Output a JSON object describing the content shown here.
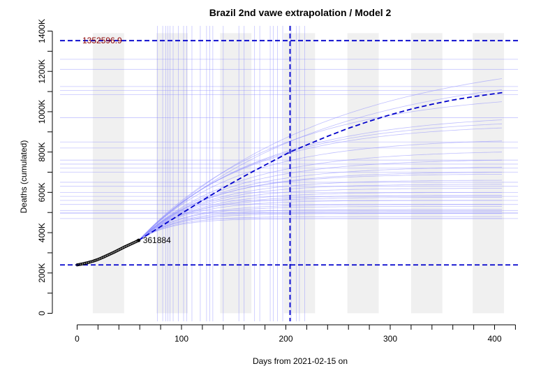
{
  "chart_data": {
    "type": "line",
    "title": "Brazil 2nd vawe extrapolation / Model 2",
    "xlabel": "Days from 2021-02-15 on",
    "ylabel": "Deaths (cumulated)",
    "xlim": [
      0,
      420
    ],
    "ylim": [
      0,
      1400000
    ],
    "x_ticks": [
      0,
      100,
      200,
      300,
      400
    ],
    "x_tick_labels": [
      "0",
      "100",
      "200",
      "300",
      "400"
    ],
    "y_ticks": [
      0,
      200000,
      400000,
      600000,
      800000,
      1000000,
      1200000,
      1400000
    ],
    "y_tick_labels": [
      "0",
      "200K",
      "400K",
      "600K",
      "800K",
      "1000K",
      "1200K",
      "1400K"
    ],
    "grid": false,
    "colors": {
      "observed": "#000000",
      "model": "#0000cc",
      "ensemble": "#8c8cff",
      "shade": "#f0f0f0",
      "upper_label": "#8b0000"
    },
    "shaded_bands": [
      [
        15,
        45
      ],
      [
        76,
        106
      ],
      [
        137,
        167
      ],
      [
        198,
        228
      ],
      [
        259,
        289
      ],
      [
        320,
        350
      ],
      [
        379,
        409
      ]
    ],
    "observed": {
      "x": [
        0,
        5,
        10,
        15,
        20,
        25,
        30,
        35,
        40,
        45,
        50,
        55,
        59
      ],
      "y": [
        240000,
        245000,
        251000,
        258000,
        267000,
        278000,
        290000,
        302000,
        315000,
        328000,
        340000,
        352000,
        361884
      ],
      "last_label": "361884"
    },
    "model_curve": {
      "x": [
        59,
        80,
        100,
        120,
        140,
        160,
        180,
        204,
        220,
        240,
        260,
        280,
        300,
        320,
        340,
        360,
        380,
        408
      ],
      "y": [
        362000,
        430000,
        495000,
        560000,
        622000,
        680000,
        735000,
        800000,
        835000,
        878000,
        918000,
        953000,
        985000,
        1013000,
        1037000,
        1058000,
        1075000,
        1095000
      ]
    },
    "ensemble_curves": [
      {
        "end": 1165000,
        "k": 0.0055
      },
      {
        "end": 1110000,
        "k": 0.0058
      },
      {
        "end": 1050000,
        "k": 0.0075
      },
      {
        "end": 960000,
        "k": 0.0085
      },
      {
        "end": 940000,
        "k": 0.009
      },
      {
        "end": 920000,
        "k": 0.0095
      },
      {
        "end": 855000,
        "k": 0.0105
      },
      {
        "end": 800000,
        "k": 0.011
      },
      {
        "end": 760000,
        "k": 0.012
      },
      {
        "end": 725000,
        "k": 0.013
      },
      {
        "end": 700000,
        "k": 0.014
      },
      {
        "end": 690000,
        "k": 0.015
      },
      {
        "end": 660000,
        "k": 0.016
      },
      {
        "end": 640000,
        "k": 0.017
      },
      {
        "end": 620000,
        "k": 0.018
      },
      {
        "end": 600000,
        "k": 0.019
      },
      {
        "end": 585000,
        "k": 0.02
      },
      {
        "end": 575000,
        "k": 0.021
      },
      {
        "end": 560000,
        "k": 0.022
      },
      {
        "end": 540000,
        "k": 0.023
      },
      {
        "end": 530000,
        "k": 0.024
      },
      {
        "end": 515000,
        "k": 0.025
      },
      {
        "end": 505000,
        "k": 0.026
      },
      {
        "end": 495000,
        "k": 0.028
      },
      {
        "end": 480000,
        "k": 0.03
      },
      {
        "end": 470000,
        "k": 0.032
      }
    ],
    "ensemble_vlines": [
      77,
      82,
      85,
      87,
      89,
      92,
      97,
      102,
      105,
      110,
      118,
      124,
      127,
      130,
      140,
      155,
      160,
      170,
      175,
      185,
      188,
      192,
      197,
      205,
      210,
      213,
      218
    ],
    "ensemble_hlines": [
      470000,
      495000,
      500000,
      510000,
      540000,
      560000,
      580000,
      600000,
      630000,
      650000,
      700000,
      720000,
      740000,
      760000,
      820000,
      850000,
      970000,
      1085000,
      1105000,
      1125000,
      1210000,
      1260000
    ],
    "vline_main": 204,
    "hline_upper": 1352596.9,
    "hline_upper_label": "1352596.9",
    "hline_lower": 240000
  }
}
